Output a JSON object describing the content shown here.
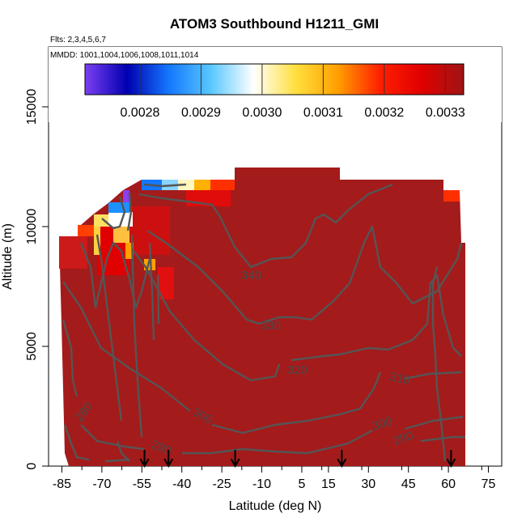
{
  "chart_data": {
    "type": "heatmap",
    "title": "ATOM3 Southbound H1211_GMI",
    "notes": [
      "Flts: 2,3,4,5,6,7",
      "MMDD: 1001,1004,1006,1008,1011,1014"
    ],
    "xlabel": "Latitude (deg N)",
    "ylabel": "Altitude (m)",
    "xlim": [
      -90,
      80
    ],
    "ylim": [
      0,
      17500
    ],
    "x_ticks": [
      -85,
      -70,
      -55,
      -40,
      -25,
      -10,
      5,
      15,
      30,
      45,
      60,
      75
    ],
    "y_ticks": [
      0,
      5000,
      10000,
      15000
    ],
    "colorbar": {
      "min": 0.00271,
      "max": 0.00333,
      "ticks": [
        0.0028,
        0.0029,
        0.003,
        0.0031,
        0.0032,
        0.0033
      ],
      "tick_labels": [
        "0.0028",
        "0.0029",
        "0.0030",
        "0.0031",
        "0.0032",
        "0.0033"
      ],
      "colors": [
        "#7b3ff2",
        "#0000b0",
        "#1478ff",
        "#5ac8ff",
        "#ffffff",
        "#ffe040",
        "#ffa000",
        "#ff2000",
        "#e00000",
        "#a01414"
      ]
    },
    "dominant_color": "#a41b1b",
    "contour_labels": [
      "340",
      "330",
      "320",
      "310",
      "300",
      "290",
      "280",
      "290",
      "300"
    ],
    "flight_arrows_lat": [
      -54,
      -45,
      -20,
      20,
      61
    ],
    "grid": false,
    "legend": "top (colorbar)"
  }
}
